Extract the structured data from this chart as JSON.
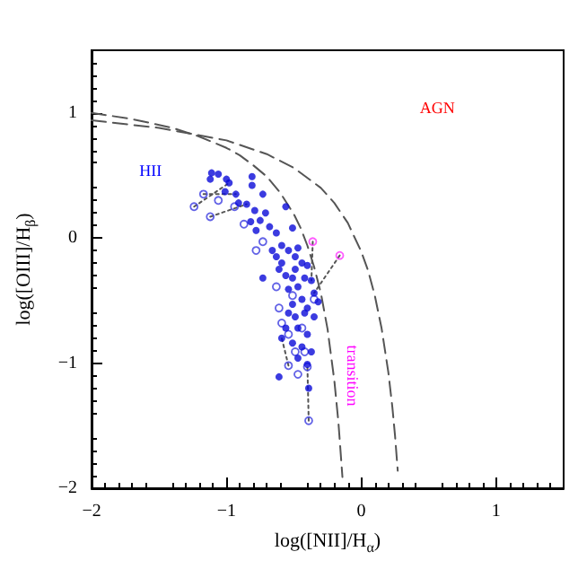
{
  "chart_data": {
    "type": "scatter",
    "xlabel": "log([NII]/H$_{α}$)",
    "ylabel": "log([OIII]/H$_{β}$)",
    "xlim": [
      -2,
      1.5
    ],
    "ylim": [
      -2,
      1.5
    ],
    "xticks": [
      -2,
      -1,
      0,
      1
    ],
    "yticks": [
      -2,
      -1,
      0,
      1
    ],
    "marker": "circle",
    "annotations": [
      "HII",
      "AGN",
      "transition"
    ],
    "series": [
      {
        "type": "line",
        "color": "#555555",
        "line_style": "dotted",
        "marker": "none",
        "x": [
          -1.24,
          -0.98
        ],
        "values": [
          0.25,
          0.44
        ]
      },
      {
        "type": "line",
        "color": "#555555",
        "line_style": "dotted",
        "marker": "none",
        "x": [
          -1.12,
          -0.85
        ],
        "values": [
          0.17,
          0.27
        ]
      },
      {
        "type": "line",
        "color": "#555555",
        "line_style": "dotted",
        "marker": "none",
        "x": [
          -1.17,
          -0.93
        ],
        "values": [
          0.35,
          0.35
        ]
      },
      {
        "type": "line",
        "color": "#555555",
        "line_style": "dotted",
        "marker": "none",
        "x": [
          -0.36,
          -0.37
        ],
        "values": [
          -0.03,
          -0.34
        ]
      },
      {
        "type": "line",
        "color": "#555555",
        "line_style": "dotted",
        "marker": "none",
        "x": [
          -0.16,
          -0.35
        ],
        "values": [
          -0.14,
          -0.44
        ]
      },
      {
        "type": "line",
        "color": "#555555",
        "line_style": "dotted",
        "marker": "none",
        "x": [
          -0.39,
          -0.4
        ],
        "values": [
          -1.46,
          -1.01
        ]
      },
      {
        "type": "line",
        "color": "#555555",
        "line_style": "dotted",
        "marker": "none",
        "x": [
          -0.54,
          -0.59
        ],
        "values": [
          -1.02,
          -0.8
        ]
      },
      {
        "type": "line",
        "color": "#555555",
        "line_style": "dashed",
        "marker": "none",
        "x": [
          -2,
          -1.7,
          -1.4,
          -1.2,
          -1,
          -0.9,
          -0.8,
          -0.7,
          -0.6,
          -0.5,
          -0.45,
          -0.4,
          -0.35,
          -0.3,
          -0.25,
          -0.2,
          -0.17,
          -0.14
        ],
        "values": [
          1.0,
          0.95,
          0.88,
          0.81,
          0.72,
          0.66,
          0.58,
          0.49,
          0.36,
          0.19,
          0.08,
          -0.06,
          -0.23,
          -0.44,
          -0.73,
          -1.14,
          -1.47,
          -1.91
        ]
      },
      {
        "type": "line",
        "color": "#555555",
        "line_style": "dashed",
        "marker": "none",
        "x": [
          -2,
          -1.5,
          -1,
          -0.7,
          -0.5,
          -0.3,
          -0.2,
          -0.1,
          0,
          0.05,
          0.1,
          0.15,
          0.2,
          0.23,
          0.25,
          0.27
        ],
        "values": [
          0.94,
          0.88,
          0.78,
          0.67,
          0.56,
          0.4,
          0.28,
          0.12,
          -0.11,
          -0.26,
          -0.46,
          -0.72,
          -1.07,
          -1.35,
          -1.58,
          -1.86
        ]
      },
      {
        "color": "#0a0ad8",
        "x": [
          -1.11,
          -1.06,
          -1.12,
          -1.0,
          -0.98,
          -1.01,
          -0.93,
          -0.81,
          -0.81,
          -0.91,
          -0.85,
          -0.79,
          -0.73,
          -0.71,
          -0.75,
          -0.82,
          -0.68,
          -0.78,
          -0.63,
          -0.56,
          -0.51,
          -0.59,
          -0.66,
          -0.54,
          -0.47,
          -0.44,
          -0.4,
          -0.49,
          -0.56,
          -0.61,
          -0.73,
          -0.51,
          -0.42,
          -0.37,
          -0.47,
          -0.54,
          -0.35,
          -0.44,
          -0.51,
          -0.4,
          -0.35,
          -0.49,
          -0.56,
          -0.47,
          -0.4,
          -0.59,
          -0.51,
          -0.44,
          -0.37,
          -0.47,
          -0.4,
          -0.61,
          -0.39,
          -0.32,
          -0.42,
          -0.54,
          -0.59,
          -0.49,
          -0.63
        ],
        "values": [
          0.52,
          0.51,
          0.47,
          0.47,
          0.44,
          0.37,
          0.35,
          0.49,
          0.42,
          0.28,
          0.27,
          0.22,
          0.35,
          0.2,
          0.14,
          0.13,
          0.09,
          0.06,
          0.04,
          0.25,
          0.08,
          -0.06,
          -0.1,
          -0.1,
          -0.08,
          -0.2,
          -0.22,
          -0.25,
          -0.3,
          -0.25,
          -0.32,
          -0.32,
          -0.32,
          -0.34,
          -0.39,
          -0.41,
          -0.44,
          -0.49,
          -0.53,
          -0.56,
          -0.63,
          -0.63,
          -0.72,
          -0.72,
          -0.77,
          -0.8,
          -0.84,
          -0.87,
          -0.91,
          -0.96,
          -1.01,
          -1.11,
          -1.2,
          -0.51,
          -0.6,
          -0.6,
          -0.2,
          -0.15,
          -0.15
        ]
      },
      {
        "color": "#3a3ae0",
        "x": [
          -1.24,
          -1.12,
          -1.17,
          -1.06,
          -0.94,
          -0.87,
          -0.78,
          -0.73,
          -0.63,
          -0.61,
          -0.54,
          -0.54,
          -0.47,
          -0.4,
          -0.39,
          -0.49,
          -0.42,
          -0.59,
          -0.44,
          -0.35,
          -0.51
        ],
        "values": [
          0.25,
          0.17,
          0.35,
          0.3,
          0.25,
          0.11,
          -0.1,
          -0.03,
          -0.39,
          -0.56,
          -0.77,
          -1.02,
          -1.09,
          -1.03,
          -1.46,
          -0.91,
          -0.91,
          -0.68,
          -0.72,
          -0.49,
          -0.46
        ]
      },
      {
        "color": "#ff33ff",
        "x": [
          -0.36,
          -0.16
        ],
        "values": [
          -0.03,
          -0.14
        ]
      }
    ]
  }
}
